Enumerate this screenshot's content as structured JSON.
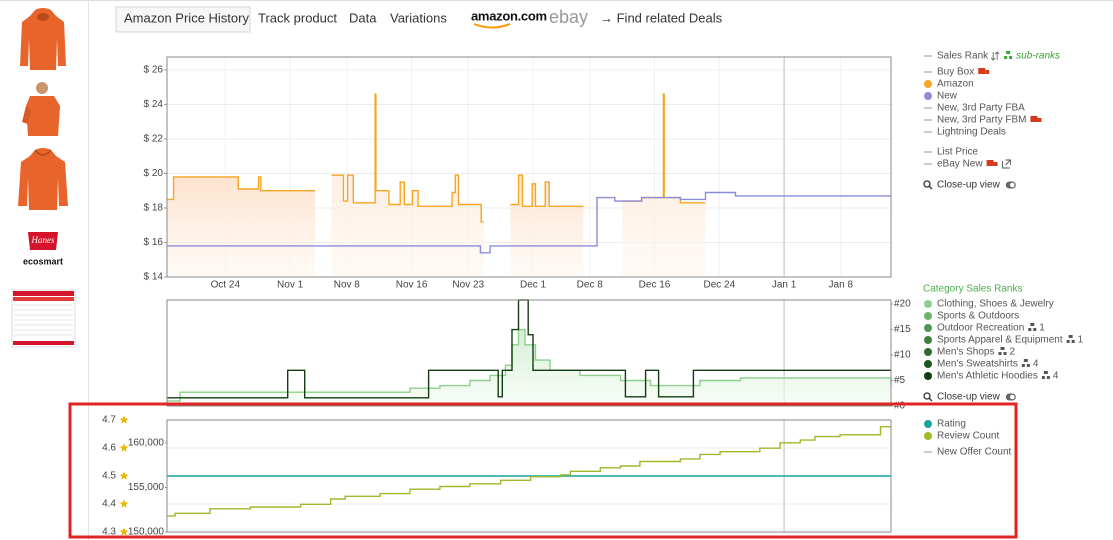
{
  "tabs": [
    "Amazon Price History",
    "Track product",
    "Data",
    "Variations"
  ],
  "logos": {
    "amazon": "amazon.com",
    "ebay": "ebay"
  },
  "deals_link": "→ Find related Deals",
  "brand": {
    "name": "Hanes",
    "tagline": "ecosmart"
  },
  "chart_data": [
    {
      "type": "line",
      "step": true,
      "xlim": [
        -7.2,
        82.2
      ],
      "xticks": [
        {
          "value": 0,
          "label": "Oct 24"
        },
        {
          "value": 8,
          "label": "Nov 1"
        },
        {
          "value": 15,
          "label": "Nov 8"
        },
        {
          "value": 23,
          "label": "Nov 16"
        },
        {
          "value": 30,
          "label": "Nov 23"
        },
        {
          "value": 38,
          "label": "Dec 1"
        },
        {
          "value": 45,
          "label": "Dec 8"
        },
        {
          "value": 53,
          "label": "Dec 16"
        },
        {
          "value": 61,
          "label": "Dec 24"
        },
        {
          "value": 69,
          "label": "Jan 1"
        },
        {
          "value": 76,
          "label": "Jan 8"
        }
      ],
      "year_line": 69,
      "ylim": [
        14,
        26.75
      ],
      "yticks": [
        {
          "value": 14,
          "label": "$ 14"
        },
        {
          "value": 16,
          "label": "$ 16"
        },
        {
          "value": 18,
          "label": "$ 18"
        },
        {
          "value": 20,
          "label": "$ 20"
        },
        {
          "value": 22,
          "label": "$ 22"
        },
        {
          "value": 24,
          "label": "$ 24"
        },
        {
          "value": 26,
          "label": "$ 26"
        }
      ],
      "grid": true,
      "series": [
        {
          "name": "Amazon",
          "color": "#f5a623",
          "area": true,
          "x": [
            -7.2,
            -6.4,
            1.6,
            4.1,
            4.4,
            11.1,
            11.2,
            13.1,
            14.6,
            15.1,
            15.8,
            18.5,
            18.6,
            20.2,
            21.6,
            22.1,
            23.1,
            23.8,
            25.4,
            28.0,
            28.4,
            28.8,
            31.6,
            31.9,
            32.0,
            35.2,
            36.2,
            36.7,
            37.9,
            38.3,
            39.5,
            40.0,
            44.2,
            44.3,
            49.0,
            51.4,
            54.1,
            54.2,
            56.2,
            59.3,
            59.4
          ],
          "values": [
            18.5,
            19.8,
            19.1,
            19.8,
            19.0,
            19.0,
            null,
            19.9,
            18.4,
            19.9,
            18.3,
            24.6,
            19.0,
            18.2,
            19.5,
            18.2,
            19.0,
            18.1,
            18.1,
            18.9,
            19.9,
            18.2,
            17.2,
            17.2,
            null,
            18.2,
            19.9,
            18.1,
            19.4,
            18.1,
            19.5,
            18.1,
            18.1,
            null,
            18.4,
            18.6,
            24.6,
            18.6,
            18.3,
            18.3,
            null
          ]
        },
        {
          "name": "New",
          "color": "#8c8cdc",
          "x": [
            -7.2,
            31.5,
            32.7,
            45.9,
            48.1,
            51.4,
            56.2,
            59.3,
            63.0,
            82.2
          ],
          "values": [
            15.8,
            15.4,
            15.8,
            18.6,
            18.4,
            18.6,
            18.5,
            18.9,
            18.7,
            18.7
          ]
        }
      ],
      "legend_items": [
        "Sales Rank",
        "Buy Box",
        "New, 3rd Party FBA",
        "New, 3rd Party FBM",
        "Lightning Deals",
        "List Price",
        "eBay New"
      ],
      "sub_ranks": "sub-ranks",
      "closeup": "Close-up view"
    },
    {
      "type": "line",
      "step": true,
      "xlim": [
        -7.2,
        82.2
      ],
      "year_line": 69,
      "ylim": [
        0,
        20.8
      ],
      "yticks": [
        {
          "value": 0,
          "label": "#0"
        },
        {
          "value": 5,
          "label": "#5"
        },
        {
          "value": 10,
          "label": "#10"
        },
        {
          "value": 15,
          "label": "#15"
        },
        {
          "value": 20,
          "label": "#20"
        }
      ],
      "legend_title": "Category Sales Ranks",
      "series": [
        {
          "name": "Clothing, Shoes & Jewelry",
          "color": "#8fcf8f",
          "area": true,
          "x": [
            -7.2,
            -5.6,
            10.1,
            22.8,
            26.5,
            30.2,
            32.7,
            34.6,
            35.4,
            36.2,
            37.0,
            38.3,
            40.1,
            43.8,
            48.8,
            52.5,
            58.6,
            63.6,
            82.2
          ],
          "values": [
            1.0,
            2.7,
            2.7,
            3.5,
            4.0,
            5.0,
            6.0,
            8.0,
            12.0,
            15.0,
            12.0,
            9.0,
            7.0,
            6.0,
            5.0,
            4.0,
            5.0,
            5.5,
            4.0
          ]
        },
        {
          "name": "Sports & Outdoors",
          "color": "#6db36d"
        },
        {
          "name": "Outdoor Recreation",
          "color": "#4f944f",
          "sub_count": 1
        },
        {
          "name": "Sports Apparel & Equipment",
          "color": "#3f803f",
          "sub_count": 1
        },
        {
          "name": "Men's Shops",
          "color": "#2f6b2f",
          "sub_count": 2
        },
        {
          "name": "Men's Sweatshirts",
          "color": "#1f561f",
          "sub_count": 4
        },
        {
          "name": "Men's Athletic Hoodies",
          "color": "#123d12",
          "sub_count": 4,
          "x": [
            -7.2,
            7.7,
            9.8,
            25.1,
            33.7,
            34.2,
            35.4,
            36.2,
            37.4,
            38.0,
            49.4,
            51.9,
            53.5,
            57.8,
            82.2
          ],
          "values": [
            1.6,
            7.0,
            1.6,
            7.0,
            1.8,
            7.0,
            15,
            20.8,
            14,
            7.0,
            1.8,
            7.0,
            1.8,
            7.0,
            7.0
          ]
        }
      ],
      "closeup": "Close-up view"
    },
    {
      "type": "line",
      "step": true,
      "xlim": [
        -7.2,
        82.2
      ],
      "year_line": 69,
      "ylim": [
        4.3,
        4.7
      ],
      "yticks": [
        4.3,
        4.4,
        4.5,
        4.6,
        4.7
      ],
      "y2lim": [
        150000,
        162556
      ],
      "y2ticks": [
        {
          "value": 150000,
          "label": "150,000"
        },
        {
          "value": 155000,
          "label": "155,000"
        },
        {
          "value": 160000,
          "label": "160,000"
        }
      ],
      "grid": true,
      "series": [
        {
          "name": "Rating",
          "color": "#17a2a2",
          "x": [
            -7.2,
            82.2
          ],
          "values": [
            4.5,
            4.5
          ]
        },
        {
          "name": "Review Count",
          "color": "#9bbb2a",
          "axis": "y2",
          "x": [
            -7.2,
            -6.2,
            -1.9,
            3.1,
            9.3,
            13.0,
            14.8,
            19.1,
            22.8,
            26.5,
            30.2,
            34.0,
            37.7,
            41.4,
            42.6,
            46.3,
            48.8,
            51.2,
            56.2,
            58.6,
            61.1,
            66.0,
            68.5,
            71.0,
            72.8,
            75.9,
            80.9,
            82.2
          ],
          "values": [
            151800,
            152100,
            152600,
            152800,
            153100,
            153700,
            154000,
            154300,
            154800,
            155100,
            155400,
            155800,
            156200,
            156400,
            156800,
            157200,
            157400,
            157900,
            158200,
            158700,
            159000,
            159400,
            160000,
            160300,
            160700,
            160900,
            161800,
            161800
          ]
        }
      ],
      "legend_items": [
        "New Offer Count"
      ]
    }
  ]
}
